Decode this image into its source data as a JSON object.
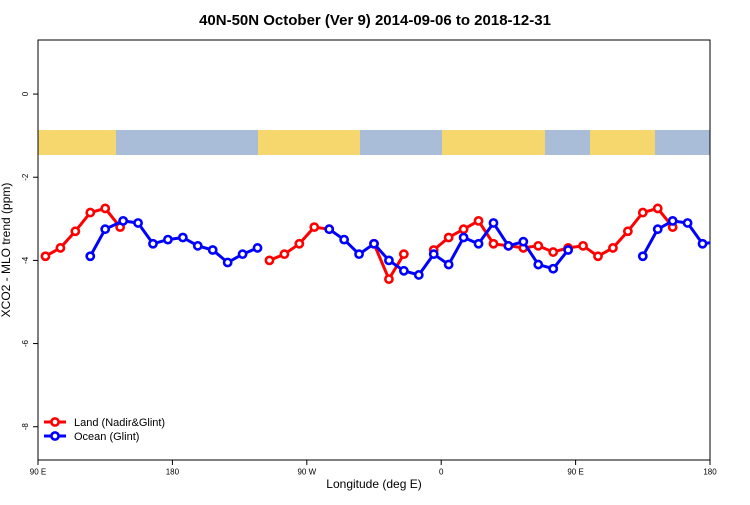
{
  "chart_data": {
    "type": "line",
    "title": "40N-50N October (Ver 9)   2014-09-06 to 2018-12-31",
    "xlabel": "Longitude (deg E)",
    "ylabel": "XCO2 - MLO trend (ppm)",
    "xlim": [
      90,
      540
    ],
    "ylim": [
      -8.8,
      1.3
    ],
    "x_ticks": [
      {
        "value": 90,
        "label": "90 E"
      },
      {
        "value": 180,
        "label": "180"
      },
      {
        "value": 270,
        "label": "90 W"
      },
      {
        "value": 360,
        "label": "0"
      },
      {
        "value": 450,
        "label": "90 E"
      },
      {
        "value": 540,
        "label": "180"
      }
    ],
    "y_ticks": [
      {
        "value": 0,
        "label": "0"
      },
      {
        "value": -2,
        "label": "-2"
      },
      {
        "value": -4,
        "label": "-4"
      },
      {
        "value": -6,
        "label": "-6"
      },
      {
        "value": -8,
        "label": "-8"
      }
    ],
    "legend_position": "bottom-left",
    "grid": false,
    "series": [
      {
        "name": "Land (Nadir&Glint)",
        "color": "#ff0000",
        "segments": [
          [
            [
              95,
              -3.9
            ],
            [
              105,
              -3.7
            ],
            [
              115,
              -3.3
            ],
            [
              125,
              -2.85
            ],
            [
              135,
              -2.75
            ],
            [
              145,
              -3.2
            ]
          ],
          [
            [
              245,
              -4.0
            ],
            [
              255,
              -3.85
            ],
            [
              265,
              -3.6
            ],
            [
              275,
              -3.2
            ],
            [
              285,
              -3.25
            ]
          ],
          [
            [
              315,
              -3.6
            ],
            [
              325,
              -4.45
            ],
            [
              335,
              -3.85
            ]
          ],
          [
            [
              355,
              -3.75
            ],
            [
              365,
              -3.45
            ],
            [
              375,
              -3.25
            ],
            [
              385,
              -3.05
            ],
            [
              395,
              -3.6
            ],
            [
              405,
              -3.65
            ],
            [
              415,
              -3.7
            ],
            [
              425,
              -3.65
            ],
            [
              435,
              -3.8
            ],
            [
              445,
              -3.7
            ],
            [
              455,
              -3.65
            ],
            [
              465,
              -3.9
            ],
            [
              475,
              -3.7
            ],
            [
              485,
              -3.3
            ],
            [
              495,
              -2.85
            ],
            [
              505,
              -2.75
            ],
            [
              515,
              -3.2
            ]
          ]
        ]
      },
      {
        "name": "Ocean (Glint)",
        "color": "#0000ff",
        "segments": [
          [
            [
              125,
              -3.9
            ],
            [
              135,
              -3.25
            ],
            [
              147,
              -3.05
            ],
            [
              157,
              -3.1
            ],
            [
              167,
              -3.6
            ],
            [
              177,
              -3.5
            ],
            [
              187,
              -3.45
            ],
            [
              197,
              -3.65
            ],
            [
              207,
              -3.75
            ],
            [
              217,
              -4.05
            ],
            [
              227,
              -3.85
            ],
            [
              237,
              -3.7
            ]
          ],
          [
            [
              285,
              -3.25
            ],
            [
              295,
              -3.5
            ],
            [
              305,
              -3.85
            ],
            [
              315,
              -3.6
            ],
            [
              325,
              -4.0
            ],
            [
              335,
              -4.25
            ],
            [
              345,
              -4.35
            ],
            [
              355,
              -3.85
            ],
            [
              365,
              -4.1
            ],
            [
              375,
              -3.45
            ],
            [
              385,
              -3.6
            ],
            [
              395,
              -3.1
            ],
            [
              405,
              -3.65
            ],
            [
              415,
              -3.55
            ],
            [
              425,
              -4.1
            ],
            [
              435,
              -4.2
            ]
          ],
          [
            [
              435,
              -4.2
            ],
            [
              445,
              -3.75
            ]
          ],
          [
            [
              495,
              -3.9
            ],
            [
              505,
              -3.25
            ],
            [
              515,
              -3.05
            ],
            [
              525,
              -3.1
            ],
            [
              535,
              -3.6
            ],
            [
              545,
              -3.55
            ]
          ]
        ]
      }
    ],
    "colors": {
      "land_band": "#f5d76e",
      "ocean_band": "#a9bcd8",
      "axis": "#000000"
    }
  }
}
